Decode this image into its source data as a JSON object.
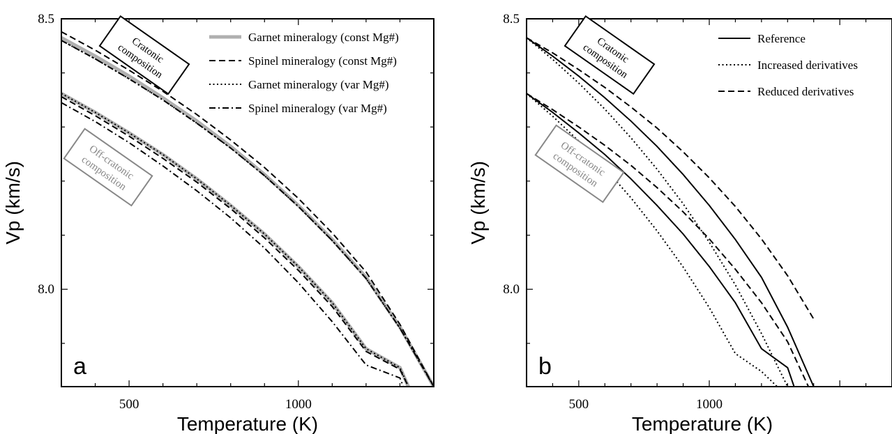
{
  "chart_data": [
    {
      "type": "line",
      "panel_label": "a",
      "xlabel": "Temperature (K)",
      "ylabel": "Vp (km/s)",
      "xlim": [
        300,
        1400
      ],
      "ylim": [
        7.82,
        8.5
      ],
      "xticks": [
        500,
        1000
      ],
      "xtick_labels": [
        "500",
        "1000"
      ],
      "yticks": [
        8.0,
        8.5
      ],
      "ytick_labels": [
        "8.0",
        "8.5"
      ],
      "grid": false,
      "legend_position": "top-right",
      "legend": [
        {
          "label": "Garnet mineralogy (const Mg#)",
          "style": "thick-gray"
        },
        {
          "label": "Spinel mineralogy (const Mg#)",
          "style": "dashed"
        },
        {
          "label": "Garnet mineralogy (var Mg#)",
          "style": "dotted"
        },
        {
          "label": "Spinel mineralogy (var Mg#)",
          "style": "dashdot"
        }
      ],
      "annotations": [
        {
          "text": [
            "Cratonic",
            "composition"
          ],
          "color": "#000000",
          "rotation": 35
        },
        {
          "text": [
            "Off-cratonic",
            "composition"
          ],
          "color": "#888888",
          "rotation": 35
        }
      ],
      "series": [
        {
          "name": "Garnet mineralogy (const Mg#)",
          "group": "Cratonic",
          "style": "thick-gray",
          "x": [
            300,
            400,
            500,
            600,
            700,
            800,
            900,
            1000,
            1100,
            1200,
            1300,
            1400
          ],
          "y": [
            8.465,
            8.431,
            8.394,
            8.354,
            8.311,
            8.264,
            8.212,
            8.155,
            8.092,
            8.022,
            7.93,
            7.82
          ]
        },
        {
          "name": "Spinel mineralogy (const Mg#)",
          "group": "Cratonic",
          "style": "dashed",
          "x": [
            300,
            400,
            500,
            600,
            700,
            800,
            900,
            1000,
            1100,
            1200,
            1300,
            1400
          ],
          "y": [
            8.476,
            8.442,
            8.405,
            8.366,
            8.323,
            8.276,
            8.225,
            8.168,
            8.104,
            8.032,
            7.935,
            7.82
          ]
        },
        {
          "name": "Garnet mineralogy (var Mg#)",
          "group": "Cratonic",
          "style": "dotted",
          "x": [
            300,
            400,
            500,
            600,
            700,
            800,
            900,
            1000,
            1100,
            1200,
            1300,
            1400
          ],
          "y": [
            8.46,
            8.426,
            8.389,
            8.35,
            8.307,
            8.261,
            8.21,
            8.153,
            8.09,
            8.02,
            7.928,
            7.82
          ]
        },
        {
          "name": "Spinel mineralogy (var Mg#)",
          "group": "Cratonic",
          "style": "dashdot",
          "x": [
            300,
            400,
            500,
            600,
            700,
            800,
            900,
            1000,
            1100,
            1200,
            1300,
            1400
          ],
          "y": [
            8.46,
            8.426,
            8.389,
            8.35,
            8.307,
            8.261,
            8.21,
            8.153,
            8.09,
            8.02,
            7.928,
            7.82
          ]
        },
        {
          "name": "Garnet mineralogy (const Mg#)",
          "group": "Off-cratonic",
          "style": "thick-gray",
          "x": [
            300,
            400,
            500,
            600,
            700,
            800,
            900,
            1000,
            1100,
            1200,
            1300,
            1325
          ],
          "y": [
            8.362,
            8.327,
            8.289,
            8.249,
            8.204,
            8.155,
            8.102,
            8.042,
            7.975,
            7.89,
            7.855,
            7.82
          ]
        },
        {
          "name": "Spinel mineralogy (const Mg#)",
          "group": "Off-cratonic",
          "style": "dashed",
          "x": [
            300,
            400,
            500,
            600,
            700,
            800,
            900,
            1000,
            1100,
            1200,
            1300,
            1325
          ],
          "y": [
            8.356,
            8.321,
            8.283,
            8.242,
            8.198,
            8.149,
            8.095,
            8.035,
            7.968,
            7.885,
            7.852,
            7.82
          ]
        },
        {
          "name": "Garnet mineralogy (var Mg#)",
          "group": "Off-cratonic",
          "style": "dotted",
          "x": [
            300,
            400,
            500,
            600,
            700,
            800,
            900,
            1000,
            1100,
            1200,
            1300,
            1325
          ],
          "y": [
            8.362,
            8.327,
            8.289,
            8.249,
            8.204,
            8.155,
            8.102,
            8.042,
            7.975,
            7.89,
            7.855,
            7.82
          ]
        },
        {
          "name": "Spinel mineralogy (var Mg#)",
          "group": "Off-cratonic",
          "style": "dashdot",
          "x": [
            300,
            400,
            500,
            600,
            700,
            800,
            900,
            1000,
            1100,
            1200,
            1300,
            1310
          ],
          "y": [
            8.345,
            8.31,
            8.271,
            8.228,
            8.182,
            8.132,
            8.076,
            8.012,
            7.94,
            7.86,
            7.836,
            7.82
          ]
        }
      ]
    },
    {
      "type": "line",
      "panel_label": "b",
      "xlabel": "Temperature (K)",
      "ylabel": "Vp (km/s)",
      "xlim": [
        300,
        1700
      ],
      "ylim": [
        7.82,
        8.5
      ],
      "xticks": [
        500,
        1000
      ],
      "xtick_labels": [
        "500",
        "1000"
      ],
      "yticks": [
        8.0,
        8.5
      ],
      "ytick_labels": [
        "8.0",
        "8.5"
      ],
      "grid": false,
      "legend_position": "top-right",
      "legend": [
        {
          "label": "Reference",
          "style": "solid"
        },
        {
          "label": "Increased derivatives",
          "style": "dotted"
        },
        {
          "label": "Reduced derivatives",
          "style": "dashed"
        }
      ],
      "annotations": [
        {
          "text": [
            "Cratonic",
            "composition"
          ],
          "color": "#000000",
          "rotation": 35
        },
        {
          "text": [
            "Off-cratonic",
            "composition"
          ],
          "color": "#888888",
          "rotation": 35
        }
      ],
      "series": [
        {
          "name": "Reference",
          "group": "Cratonic",
          "style": "solid",
          "x": [
            300,
            400,
            500,
            600,
            700,
            800,
            900,
            1000,
            1100,
            1200,
            1300,
            1400
          ],
          "y": [
            8.465,
            8.431,
            8.394,
            8.354,
            8.311,
            8.264,
            8.212,
            8.155,
            8.092,
            8.022,
            7.93,
            7.82
          ]
        },
        {
          "name": "Increased derivatives",
          "group": "Cratonic",
          "style": "dotted",
          "x": [
            300,
            400,
            500,
            600,
            700,
            800,
            900,
            1000,
            1100,
            1200,
            1300,
            1355
          ],
          "y": [
            8.465,
            8.425,
            8.381,
            8.333,
            8.28,
            8.222,
            8.158,
            8.087,
            8.008,
            7.918,
            7.82,
            7.82
          ]
        },
        {
          "name": "Reduced derivatives",
          "group": "Cratonic",
          "style": "dashed",
          "x": [
            300,
            400,
            500,
            600,
            700,
            800,
            900,
            1000,
            1100,
            1200,
            1300,
            1400
          ],
          "y": [
            8.465,
            8.437,
            8.406,
            8.373,
            8.337,
            8.298,
            8.254,
            8.206,
            8.153,
            8.093,
            8.025,
            7.945
          ]
        },
        {
          "name": "Reference",
          "group": "Off-cratonic",
          "style": "solid",
          "x": [
            300,
            400,
            500,
            600,
            700,
            800,
            900,
            1000,
            1100,
            1200,
            1300,
            1325
          ],
          "y": [
            8.362,
            8.327,
            8.289,
            8.249,
            8.204,
            8.155,
            8.102,
            8.042,
            7.975,
            7.89,
            7.855,
            7.82
          ]
        },
        {
          "name": "Increased derivatives",
          "group": "Off-cratonic",
          "style": "dotted",
          "x": [
            300,
            400,
            500,
            600,
            700,
            800,
            900,
            1000,
            1100,
            1200,
            1260
          ],
          "y": [
            8.362,
            8.32,
            8.274,
            8.224,
            8.169,
            8.108,
            8.041,
            7.966,
            7.881,
            7.848,
            7.82
          ]
        },
        {
          "name": "Reduced derivatives",
          "group": "Off-cratonic",
          "style": "dashed",
          "x": [
            300,
            400,
            500,
            600,
            700,
            800,
            900,
            1000,
            1100,
            1200,
            1300,
            1380
          ],
          "y": [
            8.362,
            8.332,
            8.3,
            8.266,
            8.229,
            8.188,
            8.143,
            8.093,
            8.037,
            7.975,
            7.903,
            7.82
          ]
        }
      ]
    }
  ]
}
